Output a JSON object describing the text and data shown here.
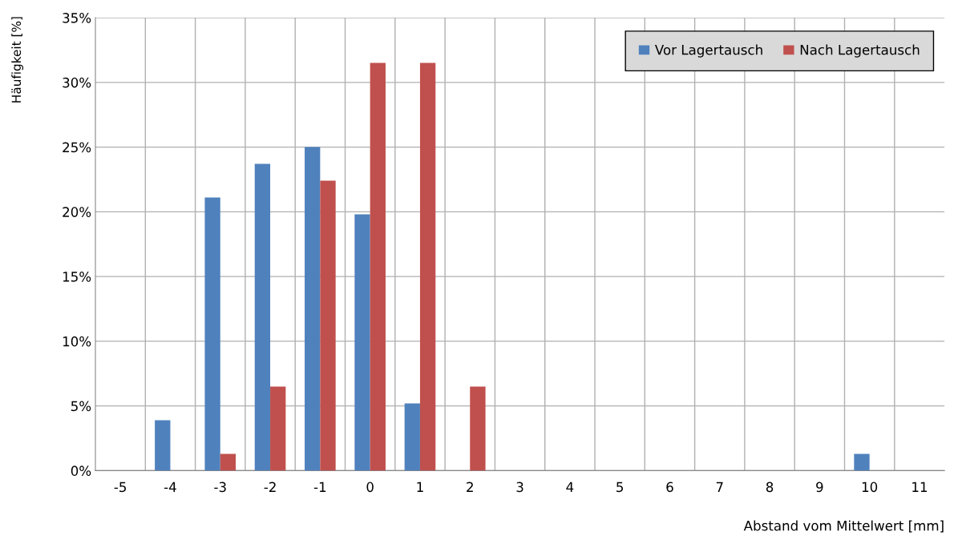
{
  "chart_data": {
    "type": "bar",
    "xlabel": "Abstand vom Mittelwert [mm]",
    "ylabel": "Häufigkeit [%]",
    "categories": [
      "-5",
      "-4",
      "-3",
      "-2",
      "-1",
      "0",
      "1",
      "2",
      "3",
      "4",
      "5",
      "6",
      "7",
      "8",
      "9",
      "10",
      "11"
    ],
    "series": [
      {
        "name": "Vor Lagertausch",
        "color": "#4f81bd",
        "values": [
          0,
          3.9,
          21.1,
          23.7,
          25.0,
          19.8,
          5.2,
          0,
          0,
          0,
          0,
          0,
          0,
          0,
          0,
          1.3,
          0
        ]
      },
      {
        "name": "Nach Lagertausch",
        "color": "#c0504d",
        "values": [
          0,
          0,
          1.3,
          6.5,
          22.4,
          31.5,
          31.5,
          6.5,
          0,
          0,
          0,
          0,
          0,
          0,
          0,
          0,
          0
        ]
      }
    ],
    "ylim": [
      0,
      35
    ],
    "yticks": [
      {
        "value": 0,
        "label": "0%"
      },
      {
        "value": 5,
        "label": "5%"
      },
      {
        "value": 10,
        "label": "10%"
      },
      {
        "value": 15,
        "label": "15%"
      },
      {
        "value": 20,
        "label": "20%"
      },
      {
        "value": 25,
        "label": "25%"
      },
      {
        "value": 30,
        "label": "30%"
      },
      {
        "value": 35,
        "label": "35%"
      }
    ],
    "grid": true,
    "legend": "top right"
  }
}
